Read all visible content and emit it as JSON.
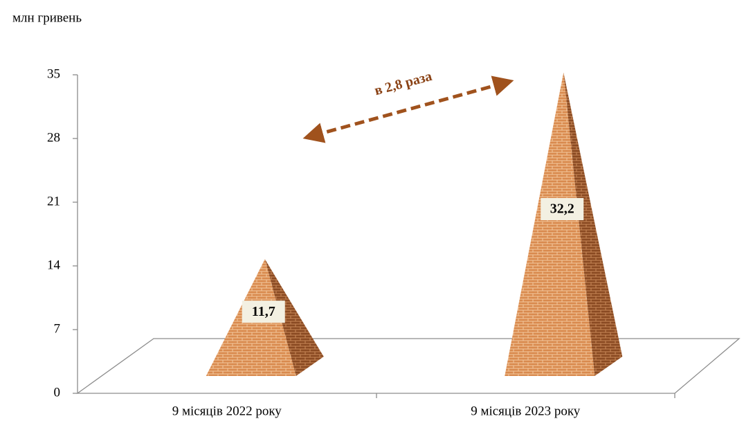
{
  "chart_data": {
    "type": "pyramid",
    "y_label": "млн гривень",
    "annotation": "в 2,8 раза",
    "categories": [
      "9 місяців 2022 року",
      "9 місяців 2023 року"
    ],
    "values": [
      11.7,
      32.2
    ],
    "value_labels": [
      "11,7",
      "32,2"
    ],
    "color": "#d98a4e",
    "ylim": [
      0,
      35
    ],
    "yticks": [
      0,
      7,
      14,
      21,
      28,
      35
    ]
  }
}
